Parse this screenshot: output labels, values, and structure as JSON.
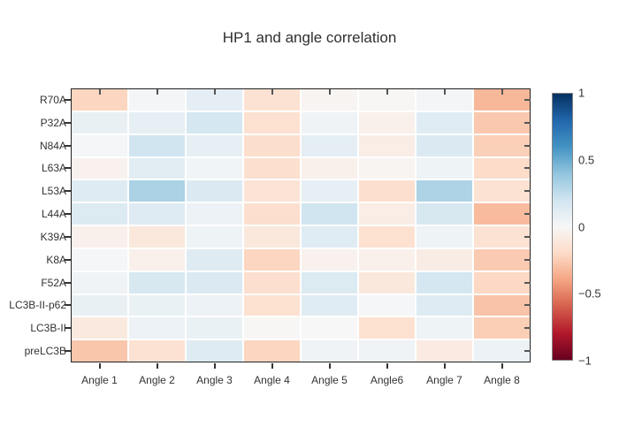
{
  "title": "HP1 and angle correlation",
  "ui_colors": {
    "background": "#ffffff",
    "plot_border": "#222222",
    "gridline": "#ffffff",
    "tick_color": "#333333",
    "label_color": "#333333",
    "colorbar_border": "#848484"
  },
  "chart_data": {
    "type": "heatmap",
    "title": "HP1 and angle correlation",
    "xlabel": "",
    "ylabel": "",
    "x_categories": [
      "Angle 1",
      "Angle 2",
      "Angle 3",
      "Angle 4",
      "Angle 5",
      "Angle6",
      "Angle 7",
      "Angle 8"
    ],
    "y_categories": [
      "R70A",
      "P32A",
      "N84A",
      "L63A",
      "L53A",
      "L44A",
      "K39A",
      "K8A",
      "F52A",
      "LC3B-II-p62",
      "LC3B-II",
      "preLC3B"
    ],
    "values": [
      [
        -0.22,
        0.02,
        0.1,
        -0.15,
        -0.02,
        -0.01,
        0.02,
        -0.33
      ],
      [
        0.08,
        0.09,
        0.18,
        -0.16,
        0.04,
        -0.05,
        0.12,
        -0.27
      ],
      [
        0.01,
        0.2,
        0.09,
        -0.18,
        0.1,
        -0.07,
        0.15,
        -0.24
      ],
      [
        -0.04,
        0.11,
        0.03,
        -0.17,
        -0.05,
        -0.02,
        0.05,
        -0.19
      ],
      [
        0.13,
        0.32,
        0.15,
        -0.14,
        0.09,
        -0.17,
        0.31,
        -0.15
      ],
      [
        0.14,
        0.13,
        0.06,
        -0.17,
        0.2,
        -0.07,
        0.17,
        -0.32
      ],
      [
        -0.05,
        -0.11,
        0.05,
        -0.11,
        0.12,
        -0.16,
        0.05,
        -0.15
      ],
      [
        0.01,
        -0.05,
        0.13,
        -0.22,
        -0.04,
        -0.05,
        -0.08,
        -0.26
      ],
      [
        0.04,
        0.17,
        0.15,
        -0.17,
        0.14,
        -0.11,
        0.18,
        -0.21
      ],
      [
        0.08,
        0.07,
        0.06,
        -0.16,
        0.12,
        0.01,
        0.13,
        -0.29
      ],
      [
        -0.1,
        0.06,
        0.07,
        -0.01,
        0.0,
        -0.16,
        0.05,
        -0.25
      ],
      [
        -0.28,
        -0.15,
        0.13,
        -0.22,
        0.04,
        0.04,
        -0.09,
        0.06
      ]
    ],
    "zmin": -1,
    "zmax": 1,
    "colorscale_name": "RdBu",
    "colorscale": [
      [
        -1.0,
        "#67001f"
      ],
      [
        -0.8,
        "#b2182b"
      ],
      [
        -0.6,
        "#d6604d"
      ],
      [
        -0.4,
        "#f4a582"
      ],
      [
        -0.2,
        "#fddbc7"
      ],
      [
        0.0,
        "#f7f7f7"
      ],
      [
        0.2,
        "#d1e5f0"
      ],
      [
        0.4,
        "#92c5de"
      ],
      [
        0.6,
        "#4393c3"
      ],
      [
        0.8,
        "#2166ac"
      ],
      [
        1.0,
        "#053061"
      ]
    ],
    "colorbar_tick_labels": [
      "1",
      "0.5",
      "0",
      "−0.5",
      "−1"
    ],
    "colorbar_tick_values": [
      1,
      0.5,
      0,
      -0.5,
      -1
    ],
    "grid": "white separators between cells",
    "legend_position": "right colorbar"
  }
}
